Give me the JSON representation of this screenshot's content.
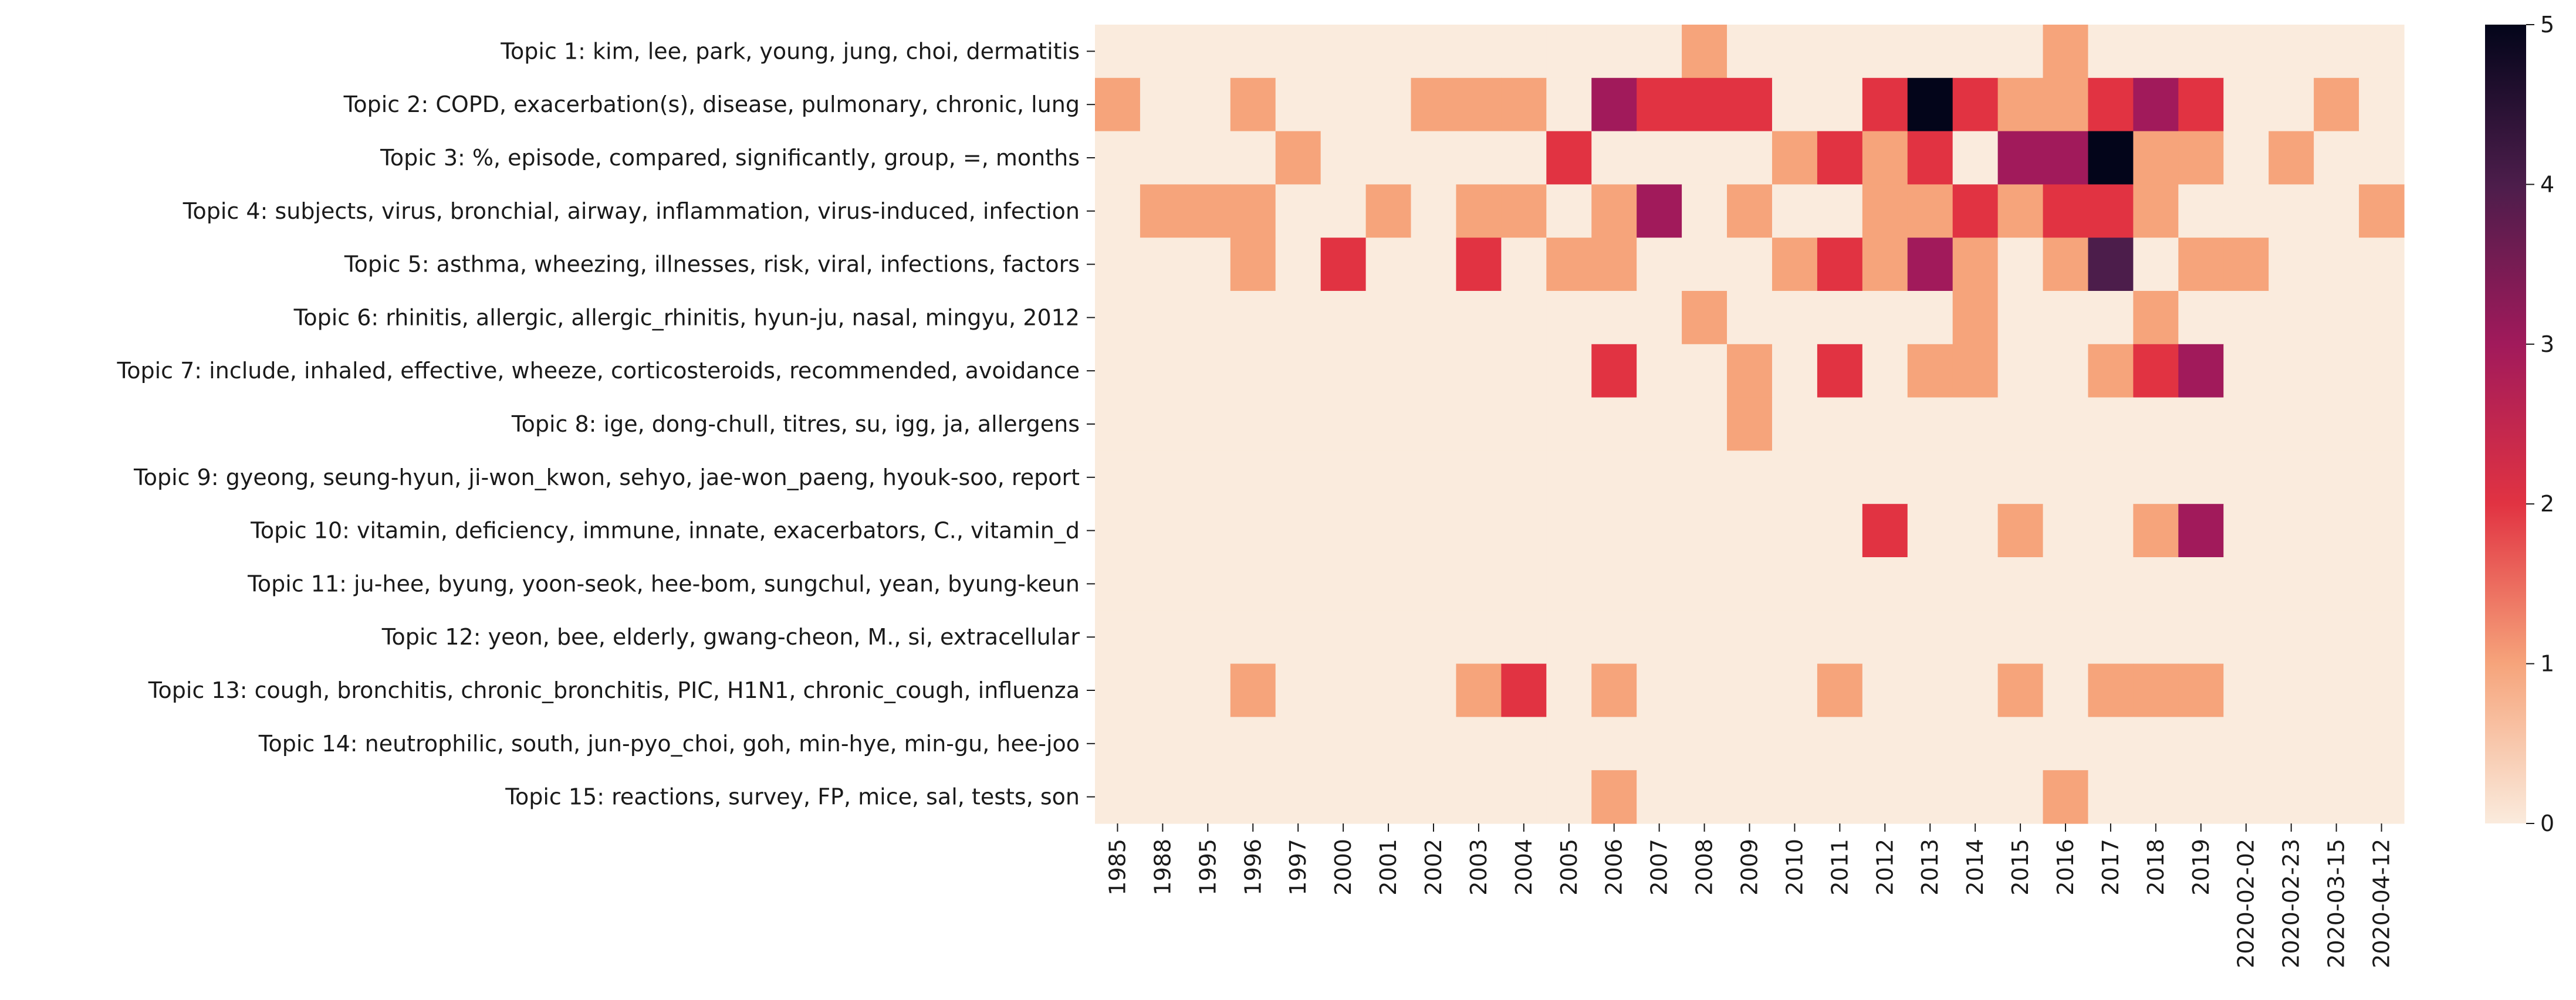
{
  "chart_data": {
    "type": "heatmap",
    "title": "",
    "xlabel": "",
    "ylabel": "",
    "colorbar": {
      "min": 0,
      "max": 5,
      "ticks": [
        0,
        1,
        2,
        3,
        4,
        5
      ],
      "colormap": "rocket_r"
    },
    "x_categories": [
      "1985",
      "1988",
      "1995",
      "1996",
      "1997",
      "2000",
      "2001",
      "2002",
      "2003",
      "2004",
      "2005",
      "2006",
      "2007",
      "2008",
      "2009",
      "2010",
      "2011",
      "2012",
      "2013",
      "2014",
      "2015",
      "2016",
      "2017",
      "2018",
      "2019",
      "2020-02-02",
      "2020-02-23",
      "2020-03-15",
      "2020-04-12"
    ],
    "y_categories": [
      "Topic 1: kim, lee, park, young, jung, choi, dermatitis",
      "Topic 2: COPD, exacerbation(s), disease, pulmonary, chronic, lung",
      "Topic 3: %, episode, compared, significantly, group, =, months",
      "Topic 4: subjects, virus, bronchial, airway, inflammation, virus-induced, infection",
      "Topic 5: asthma, wheezing, illnesses, risk, viral, infections, factors",
      "Topic 6: rhinitis, allergic, allergic_rhinitis, hyun-ju, nasal, mingyu, 2012",
      "Topic 7: include, inhaled, effective, wheeze, corticosteroids, recommended, avoidance",
      "Topic 8: ige, dong-chull, titres, su, igg, ja, allergens",
      "Topic 9: gyeong, seung-hyun, ji-won_kwon, sehyo, jae-won_paeng, hyouk-soo, report",
      "Topic 10: vitamin, deficiency, immune, innate, exacerbators, C., vitamin_d",
      "Topic 11: ju-hee, byung, yoon-seok, hee-bom, sungchul, yean, byung-keun",
      "Topic 12: yeon, bee, elderly, gwang-cheon, M., si, extracellular",
      "Topic 13: cough, bronchitis, chronic_bronchitis, PIC, H1N1, chronic_cough, influenza",
      "Topic 14: neutrophilic, south, jun-pyo_choi, goh, min-hye, min-gu, hee-joo",
      "Topic 15: reactions, survey, FP, mice, sal, tests, son"
    ],
    "values": [
      [
        0,
        0,
        0,
        0,
        0,
        0,
        0,
        0,
        0,
        0,
        0,
        0,
        0,
        1,
        0,
        0,
        0,
        0,
        0,
        0,
        0,
        1,
        0,
        0,
        0,
        0,
        0,
        0,
        0
      ],
      [
        1,
        0,
        0,
        1,
        0,
        0,
        0,
        1,
        1,
        1,
        0,
        3,
        2,
        2,
        2,
        0,
        0,
        2,
        5,
        2,
        1,
        1,
        2,
        3,
        2,
        0,
        0,
        1,
        0
      ],
      [
        0,
        0,
        0,
        0,
        1,
        0,
        0,
        0,
        0,
        0,
        2,
        0,
        0,
        0,
        0,
        1,
        2,
        1,
        2,
        0,
        3,
        3,
        5,
        1,
        1,
        0,
        1,
        0,
        0
      ],
      [
        0,
        1,
        1,
        1,
        0,
        0,
        1,
        0,
        1,
        1,
        0,
        1,
        3,
        0,
        1,
        0,
        0,
        1,
        1,
        2,
        1,
        2,
        2,
        1,
        0,
        0,
        0,
        0,
        1
      ],
      [
        0,
        0,
        0,
        1,
        0,
        2,
        0,
        0,
        2,
        0,
        1,
        1,
        0,
        0,
        0,
        1,
        2,
        1,
        3,
        1,
        0,
        1,
        4,
        0,
        1,
        1,
        0,
        0,
        0
      ],
      [
        0,
        0,
        0,
        0,
        0,
        0,
        0,
        0,
        0,
        0,
        0,
        0,
        0,
        1,
        0,
        0,
        0,
        0,
        0,
        1,
        0,
        0,
        0,
        1,
        0,
        0,
        0,
        0,
        0
      ],
      [
        0,
        0,
        0,
        0,
        0,
        0,
        0,
        0,
        0,
        0,
        0,
        2,
        0,
        0,
        1,
        0,
        2,
        0,
        1,
        1,
        0,
        0,
        1,
        2,
        3,
        0,
        0,
        0,
        0
      ],
      [
        0,
        0,
        0,
        0,
        0,
        0,
        0,
        0,
        0,
        0,
        0,
        0,
        0,
        0,
        1,
        0,
        0,
        0,
        0,
        0,
        0,
        0,
        0,
        0,
        0,
        0,
        0,
        0,
        0
      ],
      [
        0,
        0,
        0,
        0,
        0,
        0,
        0,
        0,
        0,
        0,
        0,
        0,
        0,
        0,
        0,
        0,
        0,
        0,
        0,
        0,
        0,
        0,
        0,
        0,
        0,
        0,
        0,
        0,
        0
      ],
      [
        0,
        0,
        0,
        0,
        0,
        0,
        0,
        0,
        0,
        0,
        0,
        0,
        0,
        0,
        0,
        0,
        0,
        2,
        0,
        0,
        1,
        0,
        0,
        1,
        3,
        0,
        0,
        0,
        0
      ],
      [
        0,
        0,
        0,
        0,
        0,
        0,
        0,
        0,
        0,
        0,
        0,
        0,
        0,
        0,
        0,
        0,
        0,
        0,
        0,
        0,
        0,
        0,
        0,
        0,
        0,
        0,
        0,
        0,
        0
      ],
      [
        0,
        0,
        0,
        0,
        0,
        0,
        0,
        0,
        0,
        0,
        0,
        0,
        0,
        0,
        0,
        0,
        0,
        0,
        0,
        0,
        0,
        0,
        0,
        0,
        0,
        0,
        0,
        0,
        0
      ],
      [
        0,
        0,
        0,
        1,
        0,
        0,
        0,
        0,
        1,
        2,
        0,
        1,
        0,
        0,
        0,
        0,
        1,
        0,
        0,
        0,
        1,
        0,
        1,
        1,
        1,
        0,
        0,
        0,
        0
      ],
      [
        0,
        0,
        0,
        0,
        0,
        0,
        0,
        0,
        0,
        0,
        0,
        0,
        0,
        0,
        0,
        0,
        0,
        0,
        0,
        0,
        0,
        0,
        0,
        0,
        0,
        0,
        0,
        0,
        0
      ],
      [
        0,
        0,
        0,
        0,
        0,
        0,
        0,
        0,
        0,
        0,
        0,
        1,
        0,
        0,
        0,
        0,
        0,
        0,
        0,
        0,
        0,
        1,
        0,
        0,
        0,
        0,
        0,
        0,
        0
      ]
    ],
    "level_colors": [
      "#faebdd",
      "#f6a47b",
      "#e13342",
      "#a11a5b",
      "#4c1d4b",
      "#03051a"
    ],
    "grid": false,
    "legend": "colorbar-right"
  }
}
